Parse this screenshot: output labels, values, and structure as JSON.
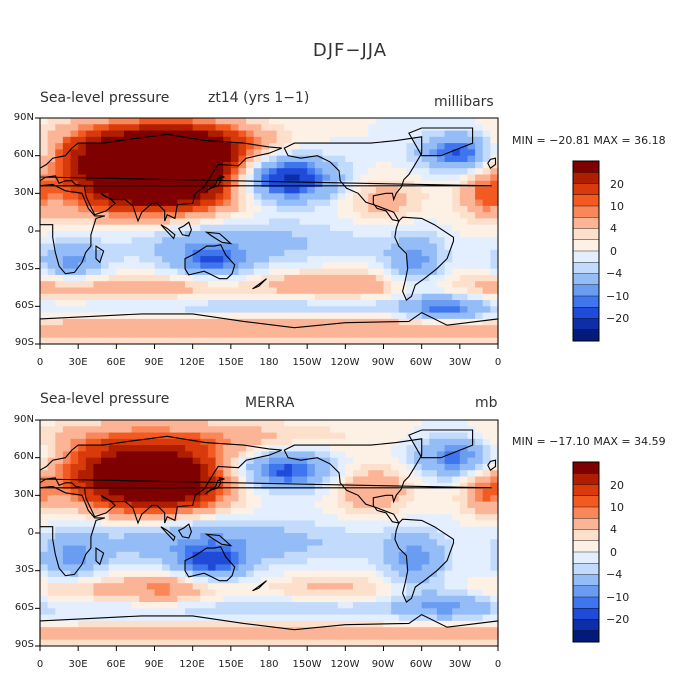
{
  "figure": {
    "title": "DJF−JJA"
  },
  "panels": [
    {
      "title_left": "Sea-level pressure",
      "title_center": "zt14 (yrs 1−1)",
      "units": "millibars",
      "stats": "MIN = −20.81 MAX =  36.18",
      "colorbar_labels": [
        "20",
        "10",
        "4",
        "0",
        "−4",
        "−10",
        "−20"
      ]
    },
    {
      "title_left": "Sea-level pressure",
      "title_center": "MERRA",
      "units": "mb",
      "stats": "MIN = −17.10 MAX =  34.59",
      "colorbar_labels": [
        "20",
        "10",
        "4",
        "0",
        "−4",
        "−10",
        "−20"
      ]
    }
  ],
  "axes": {
    "lat_labels": [
      "90N",
      "60N",
      "30N",
      "0",
      "30S",
      "60S",
      "90S"
    ],
    "lon_labels": [
      "0",
      "30E",
      "60E",
      "90E",
      "120E",
      "150E",
      "180",
      "150W",
      "120W",
      "90W",
      "60W",
      "30W",
      "0"
    ]
  },
  "colorbar_colors": [
    "#7f0000",
    "#b01e00",
    "#d93a0b",
    "#f25a22",
    "#f9875a",
    "#fcb497",
    "#fde0cc",
    "#fdf1e6",
    "#e3efff",
    "#c2dafc",
    "#94bdf7",
    "#6a9cf2",
    "#3f75ee",
    "#1f4bd8",
    "#0d2ea8",
    "#021a7a"
  ],
  "chart_data": [
    {
      "type": "heatmap",
      "title": "Sea-level pressure  zt14 (yrs 1−1)",
      "variable": "Sea-level pressure difference DJF−JJA",
      "units": "millibars",
      "min": -20.81,
      "max": 36.18,
      "contour_levels": [
        -24,
        -20,
        -16,
        -12,
        -10,
        -8,
        -4,
        -2,
        0,
        2,
        4,
        8,
        10,
        12,
        16,
        20,
        24
      ],
      "blobs": [
        {
          "lon": 100,
          "lat": 50,
          "value": 30,
          "sx": 40,
          "sy": 20
        },
        {
          "lon": 80,
          "lat": 35,
          "value": 14,
          "sx": 55,
          "sy": 22
        },
        {
          "lon": 50,
          "lat": 65,
          "value": 10,
          "sx": 35,
          "sy": 15
        },
        {
          "lon": 120,
          "lat": 70,
          "value": 12,
          "sx": 40,
          "sy": 12
        },
        {
          "lon": 190,
          "lat": 42,
          "value": -20,
          "sx": 28,
          "sy": 13
        },
        {
          "lon": 330,
          "lat": 62,
          "value": -14,
          "sx": 22,
          "sy": 11
        },
        {
          "lon": 270,
          "lat": 25,
          "value": 6,
          "sx": 20,
          "sy": 12
        },
        {
          "lon": 350,
          "lat": 28,
          "value": 8,
          "sx": 12,
          "sy": 12
        },
        {
          "lon": 110,
          "lat": 0,
          "value": -5,
          "sx": 50,
          "sy": 15
        },
        {
          "lon": 180,
          "lat": -10,
          "value": -4,
          "sx": 70,
          "sy": 12
        },
        {
          "lon": 135,
          "lat": -25,
          "value": -10,
          "sx": 22,
          "sy": 10
        },
        {
          "lon": 25,
          "lat": -25,
          "value": -9,
          "sx": 18,
          "sy": 12
        },
        {
          "lon": 295,
          "lat": -25,
          "value": -9,
          "sx": 15,
          "sy": 15
        },
        {
          "lon": 230,
          "lat": -43,
          "value": 8,
          "sx": 45,
          "sy": 8
        },
        {
          "lon": 20,
          "lat": -45,
          "value": 7,
          "sx": 40,
          "sy": 8
        },
        {
          "lon": 110,
          "lat": -45,
          "value": 5,
          "sx": 30,
          "sy": 8
        },
        {
          "lon": 320,
          "lat": -62,
          "value": -10,
          "sx": 22,
          "sy": 8
        },
        {
          "lon": 180,
          "lat": -60,
          "value": -4,
          "sx": 120,
          "sy": 6
        },
        {
          "lon": 180,
          "lat": -78,
          "value": 8,
          "sx": 200,
          "sy": 7
        }
      ]
    },
    {
      "type": "heatmap",
      "title": "Sea-level pressure  MERRA",
      "variable": "Sea-level pressure difference DJF−JJA",
      "units": "mb",
      "min": -17.1,
      "max": 34.59,
      "contour_levels": [
        -24,
        -20,
        -16,
        -12,
        -10,
        -8,
        -4,
        -2,
        0,
        2,
        4,
        8,
        10,
        12,
        16,
        20,
        24
      ],
      "blobs": [
        {
          "lon": 95,
          "lat": 40,
          "value": 26,
          "sx": 38,
          "sy": 18
        },
        {
          "lon": 60,
          "lat": 50,
          "value": 12,
          "sx": 50,
          "sy": 20
        },
        {
          "lon": 130,
          "lat": 75,
          "value": 6,
          "sx": 80,
          "sy": 10
        },
        {
          "lon": 190,
          "lat": 50,
          "value": -14,
          "sx": 30,
          "sy": 12
        },
        {
          "lon": 330,
          "lat": 60,
          "value": -13,
          "sx": 25,
          "sy": 12
        },
        {
          "lon": 260,
          "lat": 35,
          "value": 8,
          "sx": 22,
          "sy": 14
        },
        {
          "lon": 350,
          "lat": 32,
          "value": 8,
          "sx": 12,
          "sy": 12
        },
        {
          "lon": 110,
          "lat": 0,
          "value": -6,
          "sx": 50,
          "sy": 16
        },
        {
          "lon": 180,
          "lat": -8,
          "value": -4,
          "sx": 80,
          "sy": 12
        },
        {
          "lon": 135,
          "lat": -25,
          "value": -11,
          "sx": 20,
          "sy": 10
        },
        {
          "lon": 25,
          "lat": -20,
          "value": -8,
          "sx": 18,
          "sy": 14
        },
        {
          "lon": 295,
          "lat": -22,
          "value": -9,
          "sx": 16,
          "sy": 16
        },
        {
          "lon": 100,
          "lat": -45,
          "value": 9,
          "sx": 28,
          "sy": 9
        },
        {
          "lon": 30,
          "lat": -45,
          "value": 5,
          "sx": 30,
          "sy": 8
        },
        {
          "lon": 230,
          "lat": -45,
          "value": 5,
          "sx": 40,
          "sy": 8
        },
        {
          "lon": 320,
          "lat": -58,
          "value": -7,
          "sx": 25,
          "sy": 8
        },
        {
          "lon": 180,
          "lat": -60,
          "value": -4,
          "sx": 130,
          "sy": 7
        },
        {
          "lon": 180,
          "lat": -80,
          "value": 7,
          "sx": 200,
          "sy": 6
        }
      ]
    }
  ]
}
